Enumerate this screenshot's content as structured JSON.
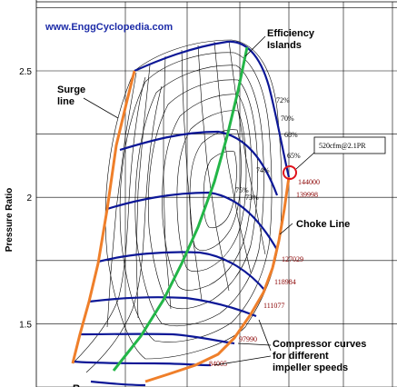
{
  "chart_data": {
    "type": "line",
    "title": "",
    "watermark": "www.EnggCyclopedia.com",
    "xlabel": "",
    "ylabel": "Pressure Ratio",
    "ylim": [
      1.25,
      2.78
    ],
    "yticks": [
      "2.5",
      "2",
      "1.5"
    ],
    "grid": true,
    "annotations": {
      "efficiency_islands": "Efficiency\nIslands",
      "surge_line": "Surge\nline",
      "choke_line": "Choke Line",
      "compressor_curves": "Compressor curves\nfor different\nimpeller speeds",
      "operating_point": "520cfm@2.1PR",
      "bottom_cut": "R"
    },
    "efficiency_labels": [
      "72%",
      "70%",
      "68%",
      "65%",
      "74%",
      "75%",
      "73%"
    ],
    "speed_labels": [
      "144000",
      "139998",
      "127029",
      "118984",
      "111077",
      "97990",
      "84005"
    ],
    "colors": {
      "speed_lines": "#0c1796",
      "surge_line": "#ef7f2a",
      "choke_line": "#ef7f2a",
      "peak_efficiency_line": "#23b648",
      "watermark": "#1d2ca8",
      "speed_labels": "#8a0000",
      "operating_point": "#e0121b"
    }
  }
}
